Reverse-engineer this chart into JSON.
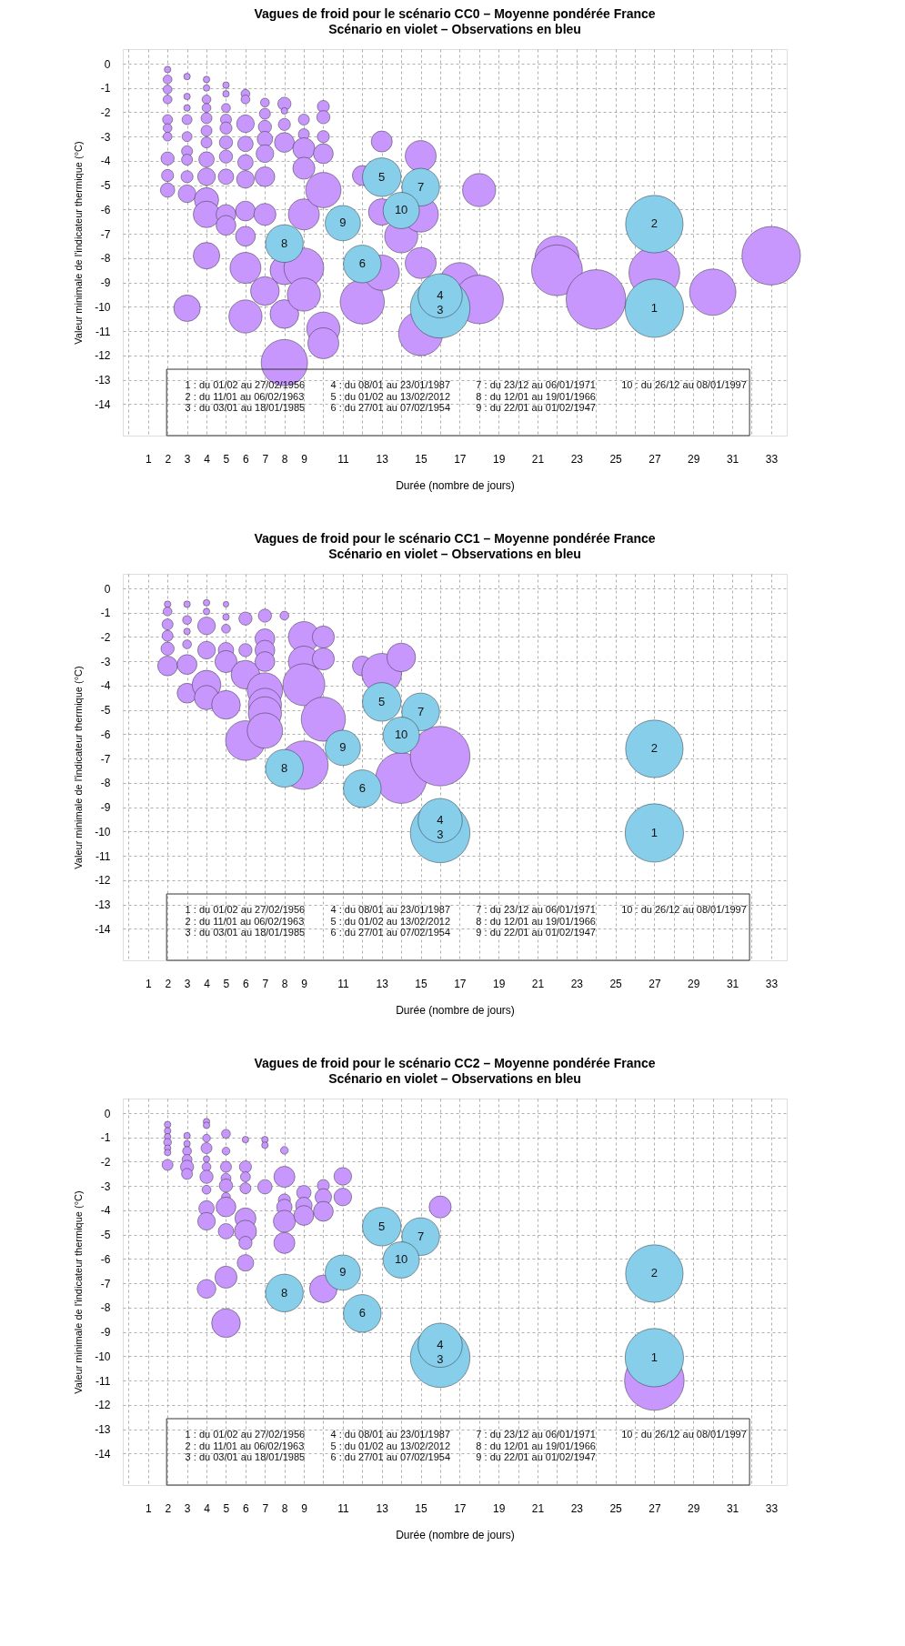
{
  "chart_data": [
    {
      "type": "bubble",
      "title": "Vagues de froid pour le scénario CC0 – Moyenne pondérée France",
      "subtitle": "Scénario en violet – Observations en bleu",
      "xlabel": "Durée (nombre de jours)",
      "ylabel": "Valeur minimale de l'indicateur thermique (°C)",
      "xlim": [
        -0.3,
        33.8
      ],
      "ylim": [
        -15.3,
        0.6
      ],
      "xticks": [
        {
          "value": 0,
          "label": null
        },
        1,
        2,
        3,
        4,
        5,
        6,
        7,
        8,
        9,
        {
          "value": 10,
          "label": null
        },
        11,
        {
          "value": 12,
          "label": null
        },
        13,
        {
          "value": 14,
          "label": null
        },
        15,
        {
          "value": 16,
          "label": null
        },
        17,
        {
          "value": 18,
          "label": null
        },
        19,
        {
          "value": 20,
          "label": null
        },
        21,
        {
          "value": 22,
          "label": null
        },
        23,
        {
          "value": 24,
          "label": null
        },
        25,
        {
          "value": 26,
          "label": null
        },
        27,
        {
          "value": 28,
          "label": null
        },
        29,
        {
          "value": 30,
          "label": null
        },
        31,
        {
          "value": 32,
          "label": null
        },
        33
      ],
      "yticks": [
        0,
        -1,
        -2,
        -3,
        -4,
        -5,
        -6,
        -7,
        -8,
        -9,
        -10,
        -11,
        -12,
        -13,
        -14
      ],
      "grid": true,
      "series": [
        {
          "color": "#c897fd",
          "x": [
            2,
            2,
            2,
            2,
            2,
            2,
            2,
            2,
            2,
            2,
            3,
            3,
            3,
            3,
            3,
            3,
            3,
            3,
            3,
            3,
            4,
            4,
            4,
            4,
            4,
            4,
            4,
            4,
            4,
            4,
            4,
            4,
            5,
            5,
            5,
            5,
            5,
            5,
            5,
            5,
            5,
            5,
            6,
            6,
            6,
            6,
            6,
            6,
            6,
            6,
            6,
            6,
            7,
            7,
            7,
            7,
            7,
            7,
            7,
            7,
            8,
            8,
            8,
            8,
            8,
            8,
            8,
            9,
            9,
            9,
            9,
            9,
            9,
            9,
            10,
            10,
            10,
            10,
            10,
            10,
            10,
            12,
            12,
            13,
            13,
            13,
            14,
            15,
            15,
            15,
            15,
            17,
            18,
            18,
            22,
            22,
            24,
            27,
            30,
            33
          ],
          "values": [
            -0.24,
            -0.65,
            -1.06,
            -1.47,
            -2.3,
            -2.65,
            -3.0,
            -3.9,
            -4.6,
            -5.2,
            -0.53,
            -1.35,
            -1.82,
            -2.3,
            -3.0,
            -3.6,
            -3.95,
            -4.65,
            -5.35,
            -10.06,
            -0.65,
            -1.0,
            -1.47,
            -1.82,
            -2.24,
            -2.76,
            -3.24,
            -3.94,
            -4.65,
            -5.6,
            -6.2,
            -7.9,
            -0.88,
            -1.24,
            -1.82,
            -2.3,
            -2.65,
            -3.24,
            -3.82,
            -4.65,
            -6.2,
            -6.65,
            -1.24,
            -1.47,
            -2.47,
            -3.3,
            -4.06,
            -4.76,
            -6.06,
            -7.1,
            -8.4,
            -10.4,
            -1.6,
            -2.06,
            -2.6,
            -3.1,
            -3.7,
            -4.65,
            -6.2,
            -9.35,
            -1.65,
            -1.94,
            -2.5,
            -3.24,
            -8.5,
            -10.3,
            -12.3,
            -2.3,
            -2.9,
            -3.5,
            -4.3,
            -6.2,
            -8.4,
            -9.5,
            -1.76,
            -2.2,
            -3.0,
            -3.7,
            -5.2,
            -10.9,
            -11.5,
            -4.6,
            -9.8,
            -3.2,
            -6.1,
            -8.6,
            -7.1,
            -3.8,
            -8.2,
            -11.1,
            -6.2,
            -9.0,
            -5.2,
            -9.7,
            -8.0,
            -8.5,
            -9.7,
            -8.6,
            -9.4,
            -7.9
          ],
          "sizes": [
            0.012,
            0.022,
            0.022,
            0.022,
            0.028,
            0.022,
            0.022,
            0.049,
            0.041,
            0.058,
            0.012,
            0.012,
            0.012,
            0.028,
            0.028,
            0.034,
            0.034,
            0.041,
            0.088,
            0.198,
            0.012,
            0.012,
            0.022,
            0.022,
            0.034,
            0.034,
            0.034,
            0.067,
            0.088,
            0.166,
            0.198,
            0.198,
            0.012,
            0.012,
            0.022,
            0.034,
            0.041,
            0.049,
            0.049,
            0.067,
            0.11,
            0.11,
            0.022,
            0.022,
            0.088,
            0.067,
            0.067,
            0.088,
            0.11,
            0.11,
            0.269,
            0.309,
            0.022,
            0.034,
            0.049,
            0.067,
            0.088,
            0.11,
            0.137,
            0.232,
            0.049,
            0.012,
            0.041,
            0.11,
            0.232,
            0.232,
            0.605,
            0.034,
            0.034,
            0.137,
            0.137,
            0.269,
            0.444,
            0.309,
            0.041,
            0.049,
            0.041,
            0.11,
            0.351,
            0.309,
            0.269,
            0.11,
            0.549,
            0.124,
            0.198,
            0.351,
            0.309,
            0.269,
            0.269,
            0.549,
            0.351,
            0.444,
            0.309,
            0.664,
            0.549,
            0.726,
            1.0,
            0.726,
            0.605,
            0.963
          ]
        },
        {
          "color": "#87ceeb",
          "x": [
            27,
            27,
            16,
            16,
            13,
            12,
            15,
            8,
            11,
            14
          ],
          "values": [
            -10.06,
            -6.6,
            -10.06,
            -9.55,
            -4.67,
            -8.24,
            -5.08,
            -7.4,
            -6.56,
            -6.04
          ],
          "sizes": [
            0.96,
            0.93,
            1.0,
            0.55,
            0.42,
            0.4,
            0.4,
            0.4,
            0.35,
            0.37
          ]
        }
      ],
      "annotations": [
        "1 : du 01/02 au 27/02/1956",
        "2 : du 11/01 au 06/02/1963",
        "3 : du 03/01 au 18/01/1985",
        "4 : du 08/01 au 23/01/1987",
        "5 : du 01/02 au 13/02/2012",
        "6 : du 27/01 au 07/02/1954",
        "7 : du 23/12 au 06/01/1971",
        "8 : du 12/01 au 19/01/1966",
        "9 : du 22/01 au 01/02/1947",
        "10 : du 26/12 au 08/01/1997",
        {
          "text": "1",
          "x": 27,
          "y": -10.06
        },
        {
          "text": "2",
          "x": 27,
          "y": -6.6
        },
        {
          "text": "3",
          "x": 16,
          "y": -10.15
        },
        {
          "text": "4",
          "x": 16,
          "y": -9.55
        },
        {
          "text": "5",
          "x": 13,
          "y": -4.67
        },
        {
          "text": "6",
          "x": 12,
          "y": -8.24
        },
        {
          "text": "7",
          "x": 15,
          "y": -5.08
        },
        {
          "text": "8",
          "x": 8,
          "y": -7.4
        },
        {
          "text": "9",
          "x": 11,
          "y": -6.56
        },
        {
          "text": "10",
          "x": 14,
          "y": -6.04
        }
      ]
    },
    {
      "type": "bubble",
      "title": "Vagues de froid pour le scénario CC1 – Moyenne pondérée France",
      "subtitle": "Scénario en violet – Observations en bleu",
      "xlabel": "Durée (nombre de jours)",
      "ylabel": "Valeur minimale de l'indicateur thermique (°C)",
      "xlim": [
        -0.3,
        33.8
      ],
      "ylim": [
        -15.3,
        0.6
      ],
      "xticks": [
        {
          "value": 0,
          "label": null
        },
        1,
        2,
        3,
        4,
        5,
        6,
        7,
        8,
        9,
        {
          "value": 10,
          "label": null
        },
        11,
        {
          "value": 12,
          "label": null
        },
        13,
        {
          "value": 14,
          "label": null
        },
        15,
        {
          "value": 16,
          "label": null
        },
        17,
        {
          "value": 18,
          "label": null
        },
        19,
        {
          "value": 20,
          "label": null
        },
        21,
        {
          "value": 22,
          "label": null
        },
        23,
        {
          "value": 24,
          "label": null
        },
        25,
        {
          "value": 26,
          "label": null
        },
        27,
        {
          "value": 28,
          "label": null
        },
        29,
        {
          "value": 30,
          "label": null
        },
        31,
        {
          "value": 32,
          "label": null
        },
        33
      ],
      "yticks": [
        0,
        -1,
        -2,
        -3,
        -4,
        -5,
        -6,
        -7,
        -8,
        -9,
        -10,
        -11,
        -12,
        -13,
        -14
      ],
      "grid": true,
      "series": [
        {
          "color": "#c897fd",
          "x": [
            2,
            2,
            2,
            2,
            2,
            2,
            3,
            3,
            3,
            3,
            3,
            3,
            4,
            4,
            4,
            4,
            4,
            4,
            5,
            5,
            5,
            5,
            5,
            5,
            6,
            6,
            6,
            6,
            7,
            7,
            7,
            7,
            7,
            7,
            7,
            7,
            8,
            9,
            9,
            9,
            9,
            10,
            10,
            10,
            12,
            13,
            14,
            14,
            16
          ],
          "values": [
            -0.65,
            -0.95,
            -1.48,
            -1.95,
            -2.48,
            -3.19,
            -0.65,
            -1.3,
            -1.77,
            -2.3,
            -3.13,
            -4.31,
            -0.59,
            -0.95,
            -1.54,
            -2.54,
            -3.96,
            -4.49,
            -0.65,
            -1.18,
            -1.66,
            -2.54,
            -3.01,
            -4.79,
            -1.24,
            -2.54,
            -3.55,
            -6.26,
            -1.12,
            -2.07,
            -2.54,
            -3.01,
            -4.2,
            -4.79,
            -5.14,
            -5.85,
            -1.12,
            -2.0,
            -3.01,
            -3.96,
            -7.27,
            -2.0,
            -2.9,
            -5.38,
            -3.19,
            -3.49,
            -2.84,
            -7.8,
            -6.9
          ],
          "sizes": [
            0.012,
            0.022,
            0.034,
            0.034,
            0.049,
            0.11,
            0.012,
            0.022,
            0.012,
            0.022,
            0.11,
            0.11,
            0.012,
            0.012,
            0.088,
            0.088,
            0.232,
            0.166,
            0.009,
            0.012,
            0.022,
            0.067,
            0.137,
            0.232,
            0.049,
            0.049,
            0.232,
            0.444,
            0.049,
            0.11,
            0.11,
            0.11,
            0.351,
            0.309,
            0.309,
            0.351,
            0.022,
            0.269,
            0.269,
            0.495,
            0.664,
            0.137,
            0.137,
            0.549,
            0.11,
            0.444,
            0.232,
            0.726,
            1.0
          ]
        },
        {
          "color": "#87ceeb",
          "x": [
            27,
            27,
            16,
            16,
            13,
            12,
            15,
            8,
            11,
            14
          ],
          "values": [
            -10.06,
            -6.6,
            -10.06,
            -9.55,
            -4.67,
            -8.24,
            -5.08,
            -7.4,
            -6.56,
            -6.04
          ],
          "sizes": [
            0.96,
            0.93,
            1.0,
            0.55,
            0.42,
            0.4,
            0.4,
            0.4,
            0.35,
            0.37
          ]
        }
      ],
      "annotations": [
        "1 : du 01/02 au 27/02/1956",
        "2 : du 11/01 au 06/02/1963",
        "3 : du 03/01 au 18/01/1985",
        "4 : du 08/01 au 23/01/1987",
        "5 : du 01/02 au 13/02/2012",
        "6 : du 27/01 au 07/02/1954",
        "7 : du 23/12 au 06/01/1971",
        "8 : du 12/01 au 19/01/1966",
        "9 : du 22/01 au 01/02/1947",
        "10 : du 26/12 au 08/01/1997",
        {
          "text": "1",
          "x": 27,
          "y": -10.06
        },
        {
          "text": "2",
          "x": 27,
          "y": -6.6
        },
        {
          "text": "3",
          "x": 16,
          "y": -10.15
        },
        {
          "text": "4",
          "x": 16,
          "y": -9.55
        },
        {
          "text": "5",
          "x": 13,
          "y": -4.67
        },
        {
          "text": "6",
          "x": 12,
          "y": -8.24
        },
        {
          "text": "7",
          "x": 15,
          "y": -5.08
        },
        {
          "text": "8",
          "x": 8,
          "y": -7.4
        },
        {
          "text": "9",
          "x": 11,
          "y": -6.56
        },
        {
          "text": "10",
          "x": 14,
          "y": -6.04
        }
      ]
    },
    {
      "type": "bubble",
      "title": "Vagues de froid pour le scénario CC2 – Moyenne pondérée France",
      "subtitle": "Scénario en violet – Observations en bleu",
      "xlabel": "Durée (nombre de jours)",
      "ylabel": "Valeur minimale de l'indicateur thermique (°C)",
      "xlim": [
        -0.3,
        33.8
      ],
      "ylim": [
        -15.3,
        0.6
      ],
      "xticks": [
        {
          "value": 0,
          "label": null
        },
        1,
        2,
        3,
        4,
        5,
        6,
        7,
        8,
        9,
        {
          "value": 10,
          "label": null
        },
        11,
        {
          "value": 12,
          "label": null
        },
        13,
        {
          "value": 14,
          "label": null
        },
        15,
        {
          "value": 16,
          "label": null
        },
        17,
        {
          "value": 18,
          "label": null
        },
        19,
        {
          "value": 20,
          "label": null
        },
        21,
        {
          "value": 22,
          "label": null
        },
        23,
        {
          "value": 24,
          "label": null
        },
        25,
        {
          "value": 26,
          "label": null
        },
        27,
        {
          "value": 28,
          "label": null
        },
        29,
        {
          "value": 30,
          "label": null
        },
        31,
        {
          "value": 32,
          "label": null
        },
        33
      ],
      "yticks": [
        0,
        -1,
        -2,
        -3,
        -4,
        -5,
        -6,
        -7,
        -8,
        -9,
        -10,
        -11,
        -12,
        -13,
        -14
      ],
      "grid": true,
      "series": [
        {
          "color": "#c897fd",
          "x": [
            2,
            2,
            2,
            2,
            2,
            2,
            2,
            3,
            3,
            3,
            3,
            3,
            3,
            4,
            4,
            4,
            4,
            4,
            4,
            4,
            4,
            4,
            4,
            4,
            5,
            5,
            5,
            5,
            5,
            5,
            5,
            5,
            5,
            5,
            6,
            6,
            6,
            6,
            6,
            6,
            6,
            6,
            7,
            7,
            7,
            8,
            8,
            8,
            8,
            8,
            8,
            9,
            9,
            9,
            10,
            10,
            10,
            10,
            11,
            11,
            16,
            27
          ],
          "values": [
            -0.47,
            -0.73,
            -0.97,
            -1.2,
            -1.44,
            -1.62,
            -2.13,
            -0.93,
            -1.26,
            -1.56,
            -1.91,
            -2.21,
            -2.5,
            -0.35,
            -0.5,
            -1.03,
            -1.44,
            -1.89,
            -2.21,
            -2.62,
            -3.15,
            -3.92,
            -4.45,
            -7.23,
            -0.85,
            -1.56,
            -2.21,
            -2.68,
            -2.98,
            -3.45,
            -3.86,
            -4.86,
            -6.75,
            -8.64,
            -1.09,
            -2.21,
            -2.62,
            -3.09,
            -4.33,
            -4.86,
            -5.34,
            -6.16,
            -1.09,
            -1.32,
            -3.03,
            -1.53,
            -2.62,
            -3.57,
            -3.86,
            -4.45,
            -5.34,
            -3.27,
            -3.8,
            -4.21,
            -2.98,
            -3.45,
            -4.04,
            -7.23,
            -2.6,
            -3.45,
            -3.86,
            -11.0
          ],
          "sizes": [
            0.012,
            0.012,
            0.012,
            0.017,
            0.012,
            0.012,
            0.034,
            0.012,
            0.012,
            0.022,
            0.028,
            0.049,
            0.034,
            0.012,
            0.012,
            0.017,
            0.034,
            0.012,
            0.022,
            0.049,
            0.022,
            0.067,
            0.088,
            0.099,
            0.022,
            0.017,
            0.034,
            0.028,
            0.049,
            0.022,
            0.11,
            0.067,
            0.137,
            0.232,
            0.012,
            0.041,
            0.028,
            0.034,
            0.124,
            0.137,
            0.049,
            0.077,
            0.012,
            0.012,
            0.058,
            0.017,
            0.124,
            0.041,
            0.067,
            0.137,
            0.124,
            0.058,
            0.077,
            0.11,
            0.041,
            0.077,
            0.11,
            0.214,
            0.088,
            0.088,
            0.137,
            1.0
          ]
        },
        {
          "color": "#87ceeb",
          "x": [
            27,
            27,
            16,
            16,
            13,
            12,
            15,
            8,
            11,
            14
          ],
          "values": [
            -10.06,
            -6.6,
            -10.06,
            -9.55,
            -4.67,
            -8.24,
            -5.08,
            -7.4,
            -6.56,
            -6.04
          ],
          "sizes": [
            0.96,
            0.93,
            1.0,
            0.55,
            0.42,
            0.4,
            0.4,
            0.4,
            0.35,
            0.37
          ]
        }
      ],
      "annotations": [
        "1 : du 01/02 au 27/02/1956",
        "2 : du 11/01 au 06/02/1963",
        "3 : du 03/01 au 18/01/1985",
        "4 : du 08/01 au 23/01/1987",
        "5 : du 01/02 au 13/02/2012",
        "6 : du 27/01 au 07/02/1954",
        "7 : du 23/12 au 06/01/1971",
        "8 : du 12/01 au 19/01/1966",
        "9 : du 22/01 au 01/02/1947",
        "10 : du 26/12 au 08/01/1997",
        {
          "text": "1",
          "x": 27,
          "y": -10.06
        },
        {
          "text": "2",
          "x": 27,
          "y": -6.6
        },
        {
          "text": "3",
          "x": 16,
          "y": -10.15
        },
        {
          "text": "4",
          "x": 16,
          "y": -9.55
        },
        {
          "text": "5",
          "x": 13,
          "y": -4.67
        },
        {
          "text": "6",
          "x": 12,
          "y": -8.24
        },
        {
          "text": "7",
          "x": 15,
          "y": -5.08
        },
        {
          "text": "8",
          "x": 8,
          "y": -7.4
        },
        {
          "text": "9",
          "x": 11,
          "y": -6.56
        },
        {
          "text": "10",
          "x": 14,
          "y": -6.04
        }
      ]
    }
  ]
}
